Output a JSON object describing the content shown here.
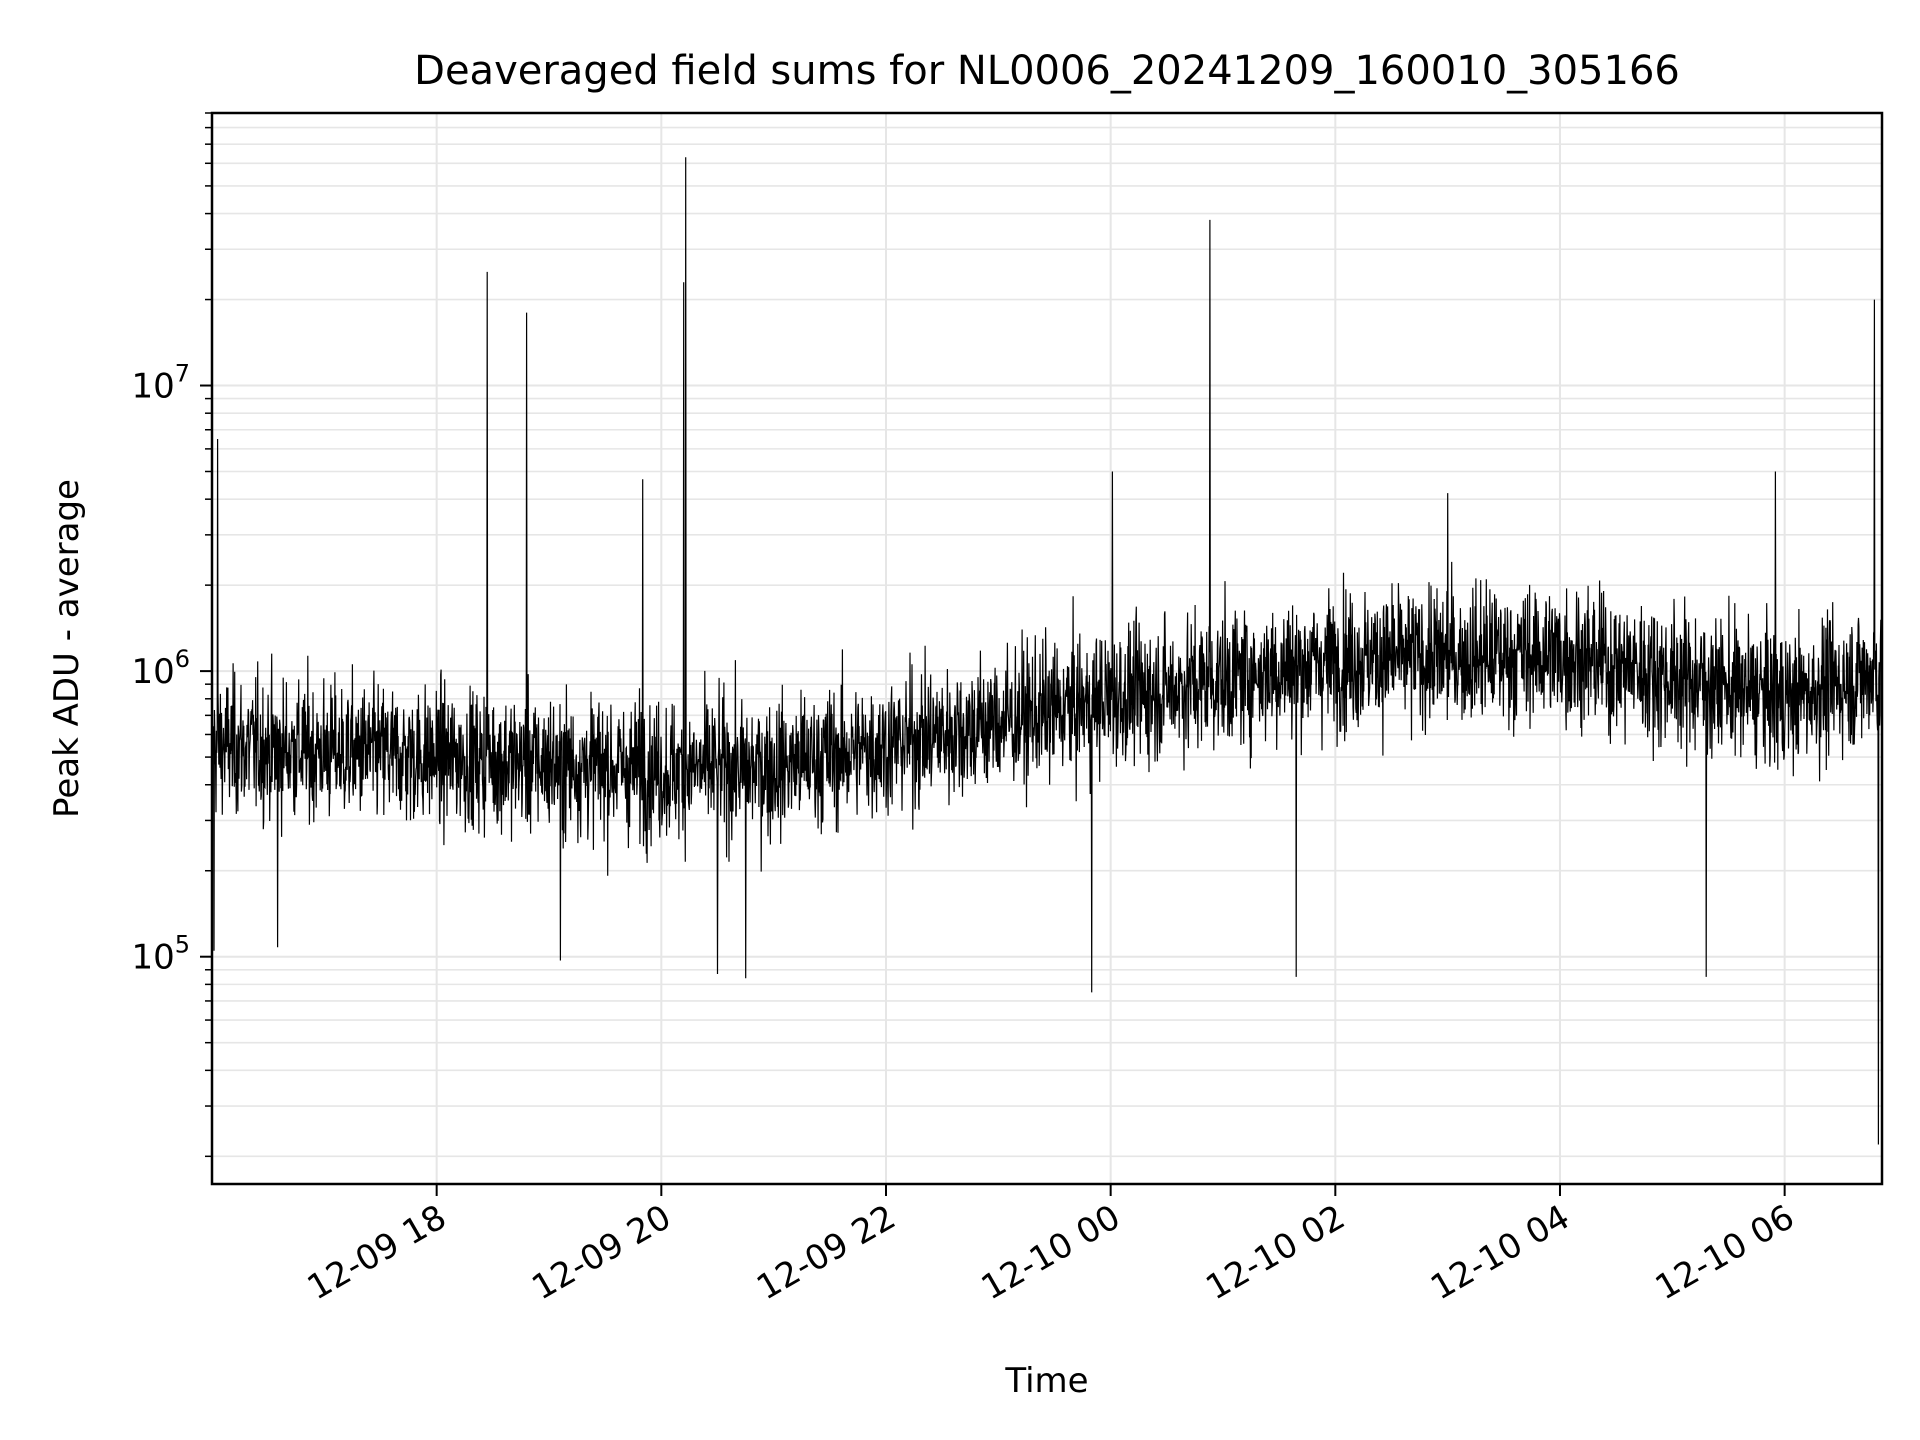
{
  "chart_data": {
    "type": "line",
    "title": "Deaveraged field sums for NL0006_20241209_160010_305166",
    "xlabel": "Time",
    "ylabel": "Peak ADU - average",
    "yscale": "log",
    "xlim": [
      "2024-12-09 16:00",
      "2024-12-10 06:52"
    ],
    "ylim": [
      16000,
      90000000
    ],
    "grid": true,
    "line_color": "#000000",
    "grid_color": "#e6e6e6",
    "x_ticks": [
      {
        "value": "2024-12-09 18:00",
        "label": "12-09 18"
      },
      {
        "value": "2024-12-09 20:00",
        "label": "12-09 20"
      },
      {
        "value": "2024-12-09 22:00",
        "label": "12-09 22"
      },
      {
        "value": "2024-12-10 00:00",
        "label": "12-10 00"
      },
      {
        "value": "2024-12-10 02:00",
        "label": "12-10 02"
      },
      {
        "value": "2024-12-10 04:00",
        "label": "12-10 04"
      },
      {
        "value": "2024-12-10 06:00",
        "label": "12-10 06"
      }
    ],
    "y_ticks": [
      {
        "value": 100000,
        "base": "10",
        "exp": "5"
      },
      {
        "value": 1000000,
        "base": "10",
        "exp": "6"
      },
      {
        "value": 10000000,
        "base": "10",
        "exp": "7"
      }
    ],
    "series": [
      {
        "baseline_trend": [
          {
            "x": "2024-12-09 16:00",
            "y": 550000
          },
          {
            "x": "2024-12-09 18:00",
            "y": 500000
          },
          {
            "x": "2024-12-09 20:00",
            "y": 450000
          },
          {
            "x": "2024-12-09 21:00",
            "y": 460000
          },
          {
            "x": "2024-12-09 22:00",
            "y": 550000
          },
          {
            "x": "2024-12-10 00:00",
            "y": 800000
          },
          {
            "x": "2024-12-10 02:00",
            "y": 1100000
          },
          {
            "x": "2024-12-10 04:00",
            "y": 1150000
          },
          {
            "x": "2024-12-10 06:00",
            "y": 800000
          },
          {
            "x": "2024-12-10 06:52",
            "y": 1000000
          }
        ],
        "spikes": [
          {
            "x": "2024-12-09 16:03",
            "y": 6500000
          },
          {
            "x": "2024-12-09 16:01",
            "y": 105000
          },
          {
            "x": "2024-12-09 16:35",
            "y": 108000
          },
          {
            "x": "2024-12-09 18:27",
            "y": 25000000
          },
          {
            "x": "2024-12-09 18:48",
            "y": 18000000
          },
          {
            "x": "2024-12-09 19:06",
            "y": 97000
          },
          {
            "x": "2024-12-09 19:50",
            "y": 4700000
          },
          {
            "x": "2024-12-09 20:12",
            "y": 23000000
          },
          {
            "x": "2024-12-09 20:13",
            "y": 63000000
          },
          {
            "x": "2024-12-09 20:30",
            "y": 87000
          },
          {
            "x": "2024-12-09 20:45",
            "y": 84000
          },
          {
            "x": "2024-12-09 23:50",
            "y": 75000
          },
          {
            "x": "2024-12-10 00:01",
            "y": 5000000
          },
          {
            "x": "2024-12-10 00:53",
            "y": 38000000
          },
          {
            "x": "2024-12-10 01:39",
            "y": 85000
          },
          {
            "x": "2024-12-10 03:00",
            "y": 4200000
          },
          {
            "x": "2024-12-10 05:18",
            "y": 85000
          },
          {
            "x": "2024-12-10 05:55",
            "y": 5000000
          },
          {
            "x": "2024-12-10 06:48",
            "y": 20000000
          },
          {
            "x": "2024-12-10 06:50",
            "y": 22000
          }
        ]
      }
    ]
  }
}
